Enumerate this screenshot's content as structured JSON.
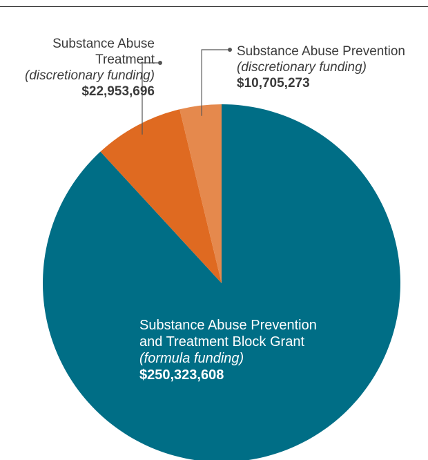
{
  "chart_data": {
    "type": "pie",
    "title": "",
    "start_angle_deg": 0,
    "direction": "clockwise",
    "slices": [
      {
        "key": "block",
        "name_lines": [
          "Substance Abuse Prevention",
          "and Treatment Block Grant"
        ],
        "funding_type": "(formula funding)",
        "amount_label": "$250,323,608",
        "value": 250323608,
        "color": "#006e86"
      },
      {
        "key": "treatment",
        "name_lines": [
          "Substance Abuse",
          "Treatment"
        ],
        "funding_type": "(discretionary funding)",
        "amount_label": "$22,953,696",
        "value": 22953696,
        "color": "#df6a21"
      },
      {
        "key": "prevention",
        "name_lines": [
          "Substance Abuse Prevention"
        ],
        "funding_type": "(discretionary funding)",
        "amount_label": "$10,705,273",
        "value": 10705273,
        "color": "#e5894d"
      }
    ]
  }
}
